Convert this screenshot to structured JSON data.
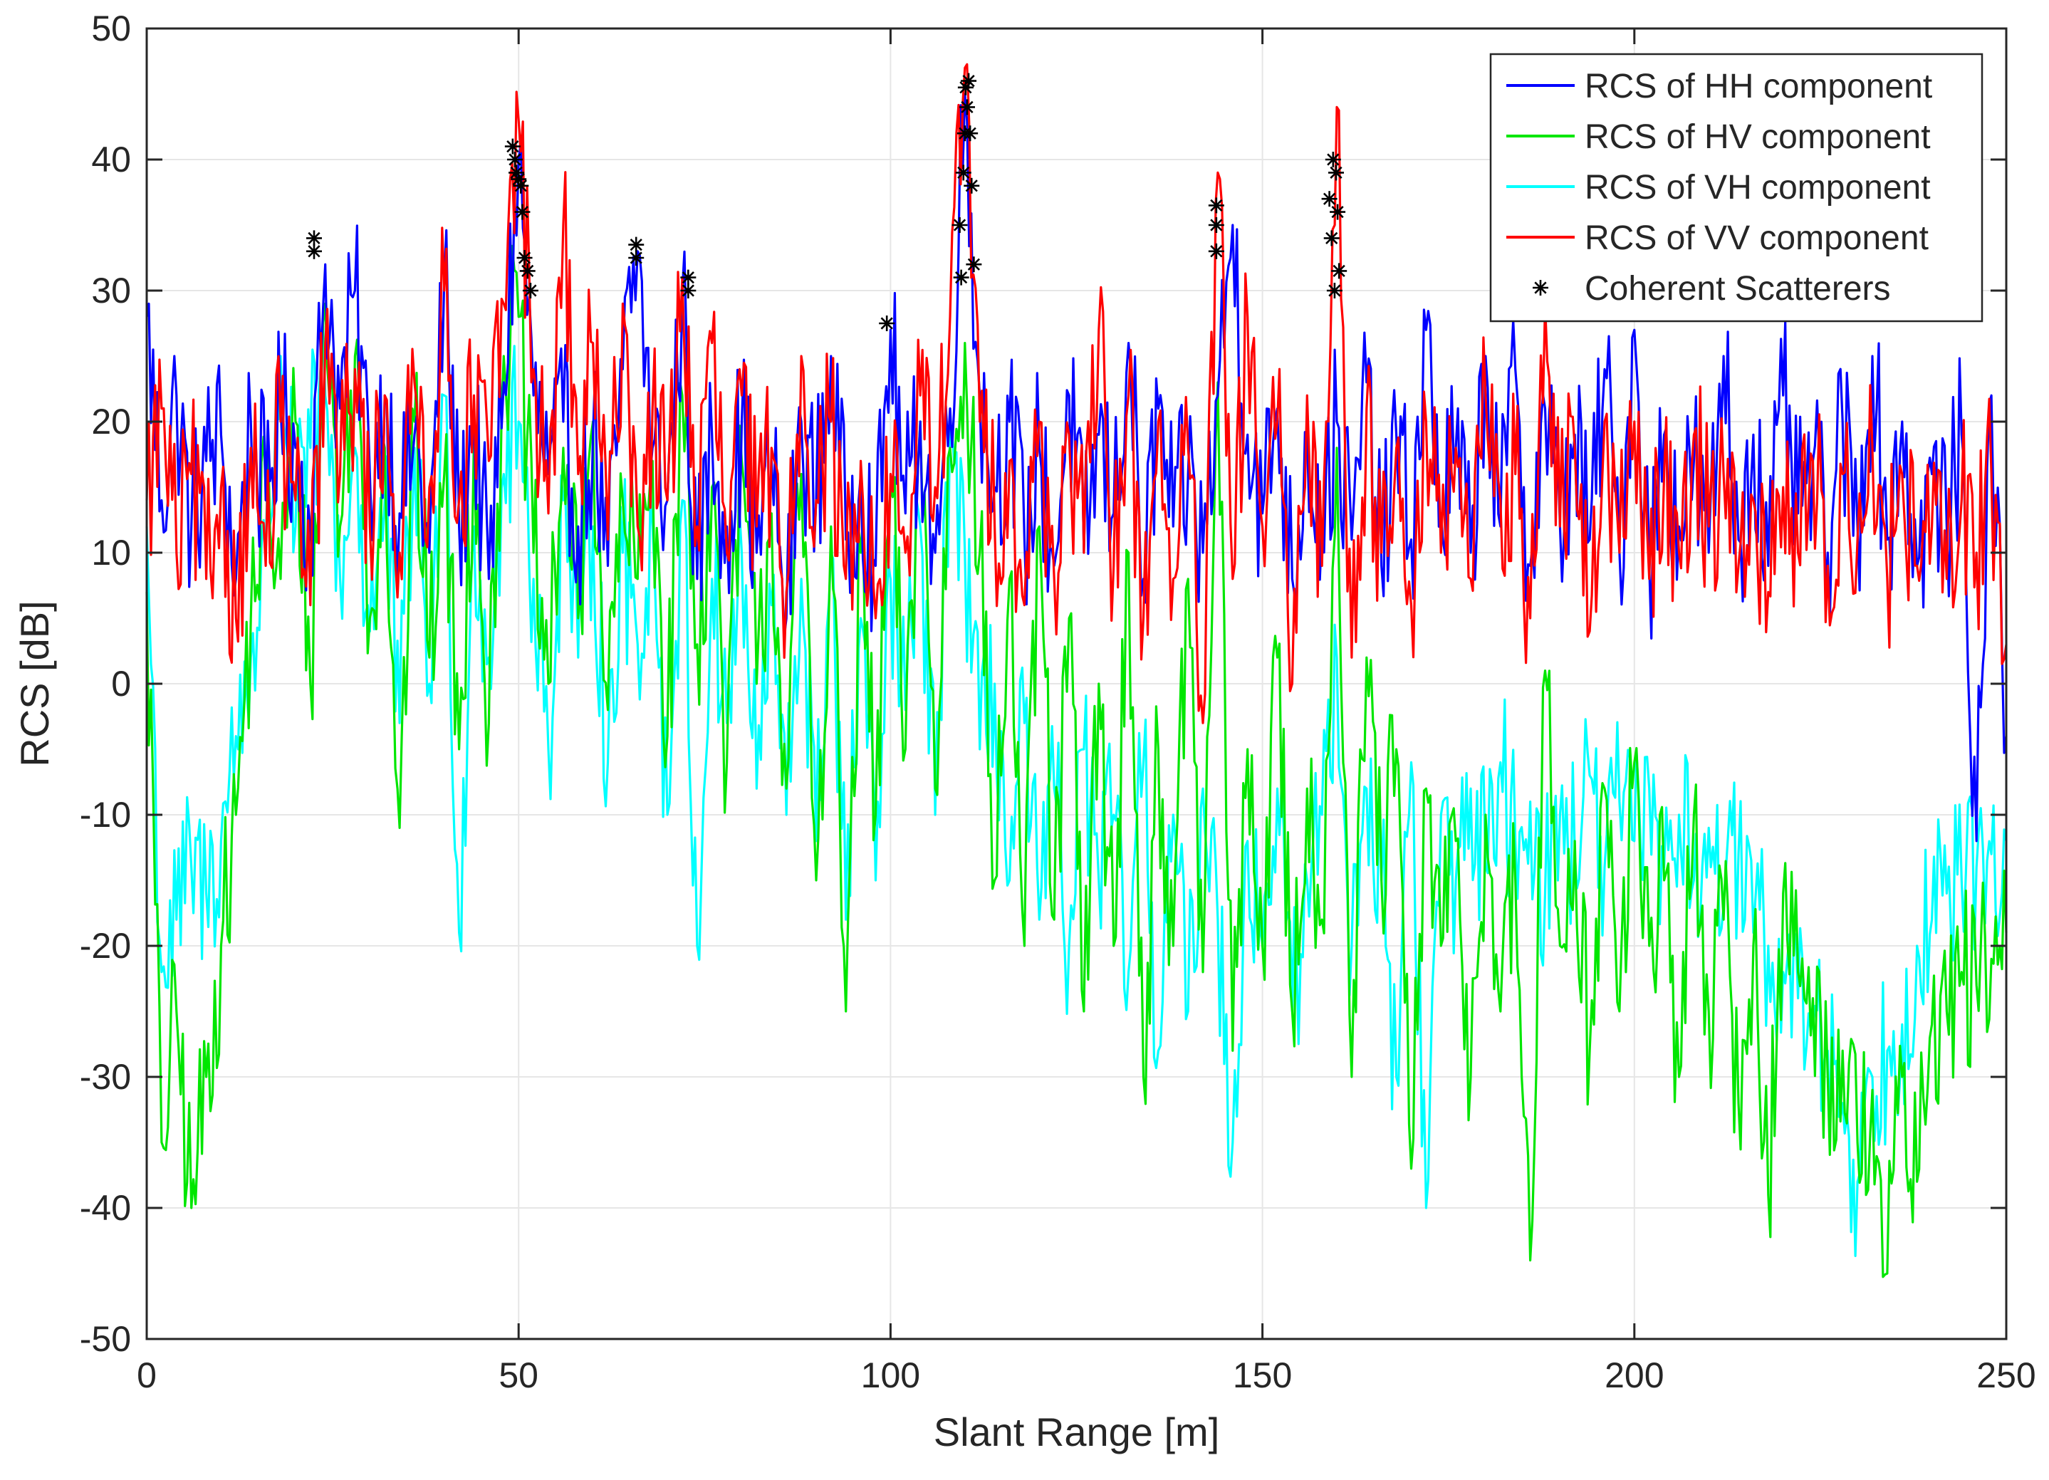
{
  "chart_data": {
    "type": "line",
    "title": "",
    "xlabel": "Slant Range [m]",
    "ylabel": "RCS [dB]",
    "xlim": [
      0,
      250
    ],
    "ylim": [
      -50,
      50
    ],
    "grid": true,
    "legend_position": "top-right",
    "x_ticks": [
      0,
      50,
      100,
      150,
      200,
      250
    ],
    "y_ticks": [
      -50,
      -40,
      -30,
      -20,
      -10,
      0,
      10,
      20,
      30,
      40,
      50
    ],
    "x_tick_labels": [
      "0",
      "50",
      "100",
      "150",
      "200",
      "250"
    ],
    "y_tick_labels": [
      "-50",
      "-40",
      "-30",
      "-20",
      "-10",
      "0",
      "10",
      "20",
      "30",
      "40",
      "50"
    ],
    "series": [
      {
        "name": "RCS of HH component",
        "color": "#0000ff",
        "x": [
          0,
          2,
          4,
          6,
          8,
          10,
          12,
          14,
          16,
          18,
          20,
          22,
          24,
          26,
          28,
          30,
          32,
          34,
          36,
          38,
          40,
          42,
          44,
          46,
          48,
          50,
          52,
          54,
          56,
          58,
          60,
          62,
          64,
          66,
          68,
          70,
          72,
          74,
          76,
          78,
          80,
          82,
          84,
          86,
          88,
          90,
          92,
          94,
          96,
          98,
          100,
          102,
          104,
          106,
          108,
          110,
          112,
          114,
          116,
          118,
          120,
          122,
          124,
          126,
          128,
          130,
          132,
          134,
          136,
          138,
          140,
          142,
          144,
          146,
          148,
          150,
          152,
          154,
          156,
          158,
          160,
          162,
          164,
          166,
          168,
          170,
          172,
          174,
          176,
          178,
          180,
          182,
          184,
          186,
          188,
          190,
          192,
          194,
          196,
          198,
          200,
          202,
          204,
          206,
          208,
          210,
          212,
          214,
          216,
          218,
          220,
          222,
          224,
          226,
          228,
          230,
          232,
          234,
          236,
          238,
          240,
          242,
          244,
          246,
          248,
          250
        ],
        "y": [
          28,
          14,
          22,
          12,
          17,
          19,
          8,
          20,
          14,
          21,
          18,
          12,
          32,
          21,
          30,
          16,
          22,
          13,
          19,
          10,
          31,
          12,
          20,
          8,
          23,
          40,
          22,
          16,
          20,
          12,
          19,
          9,
          24,
          33,
          18,
          14,
          30,
          8,
          19,
          12,
          20,
          10,
          17,
          5,
          20,
          14,
          25,
          11,
          16,
          9,
          27,
          13,
          20,
          10,
          21,
          45,
          22,
          15,
          20,
          11,
          18,
          9,
          22,
          10,
          19,
          13,
          26,
          8,
          21,
          12,
          16,
          10,
          22,
          35,
          19,
          13,
          21,
          8,
          19,
          12,
          20,
          11,
          23,
          9,
          19,
          11,
          27,
          13,
          18,
          10,
          25,
          12,
          24,
          9,
          21,
          12,
          19,
          11,
          24,
          10,
          27,
          9,
          19,
          12,
          17,
          10,
          25,
          11,
          19,
          9,
          22,
          13,
          17,
          10,
          20,
          12,
          25,
          11,
          20,
          9,
          16,
          12,
          19,
          -12,
          22,
          -4
        ]
      },
      {
        "name": "RCS of HV component",
        "color": "#00e600",
        "x": [
          0,
          2,
          4,
          6,
          8,
          10,
          12,
          14,
          16,
          18,
          20,
          22,
          24,
          26,
          28,
          30,
          32,
          34,
          36,
          38,
          40,
          42,
          44,
          46,
          48,
          50,
          52,
          54,
          56,
          58,
          60,
          62,
          64,
          66,
          68,
          70,
          72,
          74,
          76,
          78,
          80,
          82,
          84,
          86,
          88,
          90,
          92,
          94,
          96,
          98,
          100,
          102,
          104,
          106,
          108,
          110,
          112,
          114,
          116,
          118,
          120,
          122,
          124,
          126,
          128,
          130,
          132,
          134,
          136,
          138,
          140,
          142,
          144,
          146,
          148,
          150,
          152,
          154,
          156,
          158,
          160,
          162,
          164,
          166,
          168,
          170,
          172,
          174,
          176,
          178,
          180,
          182,
          184,
          186,
          188,
          190,
          192,
          194,
          196,
          198,
          200,
          202,
          204,
          206,
          208,
          210,
          212,
          214,
          216,
          218,
          220,
          222,
          224,
          226,
          228,
          230,
          232,
          234,
          236,
          238,
          240,
          242,
          244,
          246,
          248,
          250
        ],
        "y": [
          7,
          -35,
          -25,
          -40,
          -30,
          -20,
          -10,
          5,
          15,
          8,
          20,
          0,
          29,
          12,
          25,
          5,
          18,
          -11,
          20,
          2,
          16,
          -5,
          19,
          -3,
          25,
          28,
          10,
          0,
          18,
          5,
          20,
          -2,
          14,
          8,
          17,
          -4,
          22,
          3,
          15,
          -6,
          17,
          0,
          13,
          -8,
          16,
          -15,
          12,
          -25,
          10,
          -10,
          15,
          -5,
          20,
          -8,
          18,
          26,
          10,
          -15,
          8,
          -20,
          12,
          -18,
          5,
          -25,
          0,
          -20,
          10,
          -30,
          -5,
          -20,
          8,
          -22,
          23,
          -28,
          -5,
          -20,
          2,
          -25,
          -8,
          -18,
          18,
          -30,
          2,
          -15,
          -5,
          -37,
          -8,
          -20,
          -12,
          -30,
          -10,
          -25,
          -15,
          -44,
          1,
          -20,
          -12,
          -28,
          -8,
          -25,
          -6,
          -20,
          -15,
          -30,
          -10,
          -25,
          -18,
          -32,
          -20,
          -39,
          -16,
          -22,
          -24,
          -30,
          -28,
          -35,
          -31,
          -45,
          -30,
          -38,
          -26,
          -25,
          -22,
          -23,
          -21,
          -19
        ]
      },
      {
        "name": "RCS of VH component",
        "color": "#00ffff",
        "x": [
          0,
          2,
          4,
          6,
          8,
          10,
          12,
          14,
          16,
          18,
          20,
          22,
          24,
          26,
          28,
          30,
          32,
          34,
          36,
          38,
          40,
          42,
          44,
          46,
          48,
          50,
          52,
          54,
          56,
          58,
          60,
          62,
          64,
          66,
          68,
          70,
          72,
          74,
          76,
          78,
          80,
          82,
          84,
          86,
          88,
          90,
          92,
          94,
          96,
          98,
          100,
          102,
          104,
          106,
          108,
          110,
          112,
          114,
          116,
          118,
          120,
          122,
          124,
          126,
          128,
          130,
          132,
          134,
          136,
          138,
          140,
          142,
          144,
          146,
          148,
          150,
          152,
          154,
          156,
          158,
          160,
          162,
          164,
          166,
          168,
          170,
          172,
          174,
          176,
          178,
          180,
          182,
          184,
          186,
          188,
          190,
          192,
          194,
          196,
          198,
          200,
          202,
          204,
          206,
          208,
          210,
          212,
          214,
          216,
          218,
          220,
          222,
          224,
          226,
          228,
          230,
          232,
          234,
          236,
          238,
          240,
          242,
          244,
          246,
          248,
          250
        ],
        "y": [
          12,
          -22,
          -18,
          -14,
          -16,
          -12,
          -4,
          2,
          10,
          25,
          12,
          18,
          22,
          8,
          18,
          4,
          14,
          -3,
          18,
          0,
          22,
          -19,
          12,
          2,
          16,
          20,
          8,
          -5,
          14,
          2,
          12,
          -6,
          10,
          3,
          12,
          -10,
          14,
          -20,
          8,
          -3,
          10,
          -8,
          6,
          -10,
          8,
          -12,
          10,
          -18,
          5,
          -15,
          8,
          -2,
          12,
          -10,
          20,
          10,
          -5,
          0,
          -15,
          -3,
          -18,
          -8,
          -20,
          -5,
          -15,
          -10,
          -22,
          -6,
          -28,
          -10,
          -25,
          -8,
          -18,
          -35,
          -12,
          -20,
          -8,
          -25,
          -15,
          -10,
          2,
          -20,
          -8,
          -15,
          -30,
          -6,
          -40,
          -10,
          -15,
          -8,
          -14,
          -6,
          -12,
          -9,
          -16,
          -10,
          -13,
          -7,
          -14,
          -9,
          -12,
          -8,
          -14,
          -10,
          -15,
          -11,
          -17,
          -13,
          -19,
          -20,
          -22,
          -24,
          -26,
          -28,
          -32,
          -38,
          -30,
          -28,
          -26,
          -20,
          -18,
          -16,
          -15,
          -14,
          -13,
          -12
        ]
      },
      {
        "name": "RCS of VV component",
        "color": "#ff0000",
        "x": [
          0,
          2,
          4,
          6,
          8,
          10,
          12,
          14,
          16,
          18,
          20,
          22,
          24,
          26,
          28,
          30,
          32,
          34,
          36,
          38,
          40,
          42,
          44,
          46,
          48,
          50,
          52,
          54,
          56,
          58,
          60,
          62,
          64,
          66,
          68,
          70,
          72,
          74,
          76,
          78,
          80,
          82,
          84,
          86,
          88,
          90,
          92,
          94,
          96,
          98,
          100,
          102,
          104,
          106,
          108,
          110,
          112,
          114,
          116,
          118,
          120,
          122,
          124,
          126,
          128,
          130,
          132,
          134,
          136,
          138,
          140,
          142,
          144,
          146,
          148,
          150,
          152,
          154,
          156,
          158,
          160,
          162,
          164,
          166,
          168,
          170,
          172,
          174,
          176,
          178,
          180,
          182,
          184,
          186,
          188,
          190,
          192,
          194,
          196,
          198,
          200,
          202,
          204,
          206,
          208,
          210,
          212,
          214,
          216,
          218,
          220,
          222,
          224,
          226,
          228,
          230,
          232,
          234,
          236,
          238,
          240,
          242,
          244,
          246,
          248,
          250
        ],
        "y": [
          14,
          21,
          10,
          16,
          8,
          15,
          5,
          18,
          9,
          20,
          14,
          6,
          26,
          16,
          24,
          12,
          22,
          10,
          23,
          15,
          30,
          14,
          22,
          17,
          29,
          43,
          24,
          13,
          35,
          16,
          26,
          11,
          29,
          12,
          21,
          14,
          31,
          12,
          26,
          10,
          22,
          12,
          18,
          7,
          25,
          14,
          20,
          8,
          17,
          5,
          16,
          10,
          22,
          15,
          28,
          47,
          20,
          12,
          17,
          6,
          20,
          8,
          19,
          10,
          27,
          9,
          22,
          5,
          20,
          8,
          18,
          -3,
          39,
          8,
          28,
          12,
          20,
          0,
          22,
          9,
          44,
          2,
          21,
          10,
          18,
          6,
          20,
          10,
          18,
          8,
          22,
          14,
          16,
          5,
          29,
          12,
          18,
          4,
          20,
          10,
          20,
          8,
          16,
          10,
          19,
          12,
          16,
          9,
          14,
          7,
          15,
          10,
          17,
          9,
          16,
          11,
          18,
          8,
          16,
          9,
          12,
          8,
          14,
          10,
          16,
          3
        ]
      }
    ],
    "markers": {
      "name": "Coherent Scatterers",
      "color": "#000000",
      "symbol": "*",
      "points": [
        {
          "x": 22.5,
          "y": 34
        },
        {
          "x": 22.5,
          "y": 33
        },
        {
          "x": 49.2,
          "y": 41
        },
        {
          "x": 49.5,
          "y": 40
        },
        {
          "x": 49.7,
          "y": 39
        },
        {
          "x": 50.0,
          "y": 38.5
        },
        {
          "x": 50.3,
          "y": 38
        },
        {
          "x": 50.5,
          "y": 36
        },
        {
          "x": 50.8,
          "y": 32.5
        },
        {
          "x": 51.2,
          "y": 31.5
        },
        {
          "x": 51.6,
          "y": 30
        },
        {
          "x": 65.8,
          "y": 33.5
        },
        {
          "x": 65.8,
          "y": 32.5
        },
        {
          "x": 72.8,
          "y": 31
        },
        {
          "x": 72.8,
          "y": 30
        },
        {
          "x": 99.5,
          "y": 27.5
        },
        {
          "x": 109.3,
          "y": 35
        },
        {
          "x": 109.5,
          "y": 31
        },
        {
          "x": 109.8,
          "y": 39
        },
        {
          "x": 110.0,
          "y": 42
        },
        {
          "x": 110.1,
          "y": 45.5
        },
        {
          "x": 110.3,
          "y": 44
        },
        {
          "x": 110.5,
          "y": 46
        },
        {
          "x": 110.7,
          "y": 42
        },
        {
          "x": 110.9,
          "y": 38
        },
        {
          "x": 111.2,
          "y": 32
        },
        {
          "x": 143.8,
          "y": 36.5
        },
        {
          "x": 143.8,
          "y": 35
        },
        {
          "x": 143.8,
          "y": 33
        },
        {
          "x": 159.0,
          "y": 37
        },
        {
          "x": 159.3,
          "y": 34
        },
        {
          "x": 159.5,
          "y": 40
        },
        {
          "x": 159.7,
          "y": 30
        },
        {
          "x": 159.9,
          "y": 39
        },
        {
          "x": 160.1,
          "y": 36
        },
        {
          "x": 160.3,
          "y": 31.5
        }
      ]
    }
  }
}
